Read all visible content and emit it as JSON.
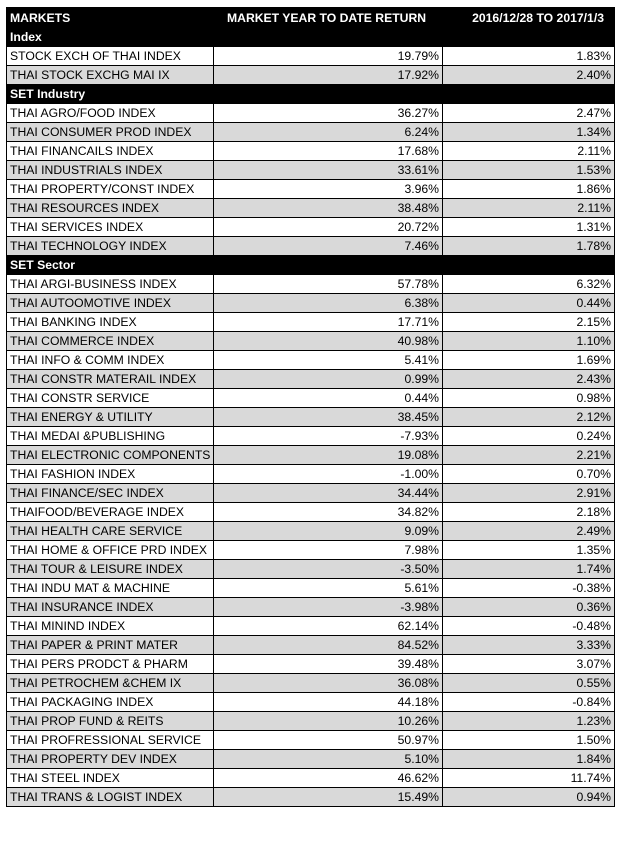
{
  "header": {
    "col1": "MARKETS",
    "col2": "MARKET YEAR TO DATE RETURN",
    "col3": "2016/12/28 TO 2017/1/3"
  },
  "sections": [
    {
      "title": "Index",
      "rows": [
        {
          "name": "STOCK EXCH OF THAI INDEX",
          "ytd": "19.79%",
          "period": "1.83%"
        },
        {
          "name": "THAI STOCK EXCHG MAI IX",
          "ytd": "17.92%",
          "period": "2.40%"
        }
      ]
    },
    {
      "title": "SET Industry",
      "rows": [
        {
          "name": "THAI AGRO/FOOD INDEX",
          "ytd": "36.27%",
          "period": "2.47%"
        },
        {
          "name": "THAI CONSUMER PROD INDEX",
          "ytd": "6.24%",
          "period": "1.34%"
        },
        {
          "name": "THAI FINANCAILS INDEX",
          "ytd": "17.68%",
          "period": "2.11%"
        },
        {
          "name": "THAI INDUSTRIALS INDEX",
          "ytd": "33.61%",
          "period": "1.53%"
        },
        {
          "name": "THAI PROPERTY/CONST INDEX",
          "ytd": "3.96%",
          "period": "1.86%"
        },
        {
          "name": "THAI RESOURCES INDEX",
          "ytd": "38.48%",
          "period": "2.11%"
        },
        {
          "name": "THAI SERVICES INDEX",
          "ytd": "20.72%",
          "period": "1.31%"
        },
        {
          "name": "THAI TECHNOLOGY INDEX",
          "ytd": "7.46%",
          "period": "1.78%"
        }
      ]
    },
    {
      "title": "SET Sector",
      "rows": [
        {
          "name": "THAI ARGI-BUSINESS INDEX",
          "ytd": "57.78%",
          "period": "6.32%"
        },
        {
          "name": "THAI AUTOOMOTIVE INDEX",
          "ytd": "6.38%",
          "period": "0.44%"
        },
        {
          "name": "THAI BANKING INDEX",
          "ytd": "17.71%",
          "period": "2.15%"
        },
        {
          "name": "THAI COMMERCE INDEX",
          "ytd": "40.98%",
          "period": "1.10%"
        },
        {
          "name": "THAI INFO & COMM INDEX",
          "ytd": "5.41%",
          "period": "1.69%"
        },
        {
          "name": "THAI CONSTR MATERAIL INDEX",
          "ytd": "0.99%",
          "period": "2.43%"
        },
        {
          "name": "THAI CONSTR SERVICE",
          "ytd": "0.44%",
          "period": "0.98%"
        },
        {
          "name": "THAI ENERGY & UTILITY",
          "ytd": "38.45%",
          "period": "2.12%"
        },
        {
          "name": "THAI MEDAI &PUBLISHING",
          "ytd": "-7.93%",
          "period": "0.24%"
        },
        {
          "name": "THAI ELECTRONIC COMPONENTS",
          "ytd": "19.08%",
          "period": "2.21%"
        },
        {
          "name": "THAI FASHION INDEX",
          "ytd": "-1.00%",
          "period": "0.70%"
        },
        {
          "name": "THAI FINANCE/SEC INDEX",
          "ytd": "34.44%",
          "period": "2.91%"
        },
        {
          "name": "THAIFOOD/BEVERAGE INDEX",
          "ytd": "34.82%",
          "period": "2.18%"
        },
        {
          "name": "THAI HEALTH CARE SERVICE",
          "ytd": "9.09%",
          "period": "2.49%"
        },
        {
          "name": "THAI HOME & OFFICE PRD INDEX",
          "ytd": "7.98%",
          "period": "1.35%"
        },
        {
          "name": "THAI TOUR & LEISURE INDEX",
          "ytd": "-3.50%",
          "period": "1.74%"
        },
        {
          "name": "THAI INDU MAT & MACHINE",
          "ytd": "5.61%",
          "period": "-0.38%"
        },
        {
          "name": "THAI INSURANCE INDEX",
          "ytd": "-3.98%",
          "period": "0.36%"
        },
        {
          "name": "THAI MININD INDEX",
          "ytd": "62.14%",
          "period": "-0.48%"
        },
        {
          "name": "THAI PAPER & PRINT MATER",
          "ytd": "84.52%",
          "period": "3.33%"
        },
        {
          "name": "THAI PERS PRODCT & PHARM",
          "ytd": "39.48%",
          "period": "3.07%"
        },
        {
          "name": "THAI PETROCHEM &CHEM IX",
          "ytd": "36.08%",
          "period": "0.55%"
        },
        {
          "name": "THAI PACKAGING INDEX",
          "ytd": "44.18%",
          "period": "-0.84%"
        },
        {
          "name": "THAI PROP FUND & REITS",
          "ytd": "10.26%",
          "period": "1.23%"
        },
        {
          "name": "THAI PROFRESSIONAL SERVICE",
          "ytd": "50.97%",
          "period": "1.50%"
        },
        {
          "name": "THAI PROPERTY DEV INDEX",
          "ytd": "5.10%",
          "period": "1.84%"
        },
        {
          "name": "THAI STEEL INDEX",
          "ytd": "46.62%",
          "period": "11.74%"
        },
        {
          "name": "THAI TRANS & LOGIST INDEX",
          "ytd": "15.49%",
          "period": "0.94%"
        }
      ]
    }
  ],
  "colors": {
    "header_bg": "#000000",
    "header_text": "#ffffff",
    "row_shade": "#d9d9d9",
    "row_plain": "#ffffff"
  }
}
